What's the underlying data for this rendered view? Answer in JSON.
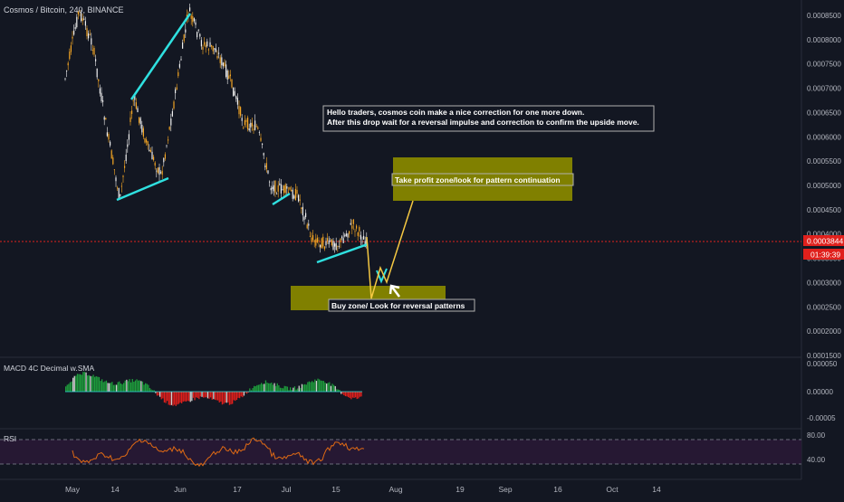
{
  "header": {
    "symbol_title": "Cosmos / Bitcoin, 240, BINANCE"
  },
  "annotations": {
    "idea_line1": "Hello traders, cosmos coin make a nice correction for one more down.",
    "idea_line2": "After this drop wait for a reversal impulse and correction to confirm the upside move.",
    "take_profit": "Take profit zone/look for pattern continuation",
    "buy_zone": "Buy zone/ Look for reversal patterns"
  },
  "price_axis": {
    "current_price": "0.0003844",
    "countdown": "01:39:39"
  },
  "colors": {
    "background": "#131722",
    "up_candle": "#f5a623",
    "down_candle": "#f0f0f0",
    "trendline": "#2fe0e0",
    "zone_fill": "#808000",
    "macd_pos": "#1e9e3c",
    "macd_neg": "#e0201c",
    "rsi_line": "#e06a14",
    "rsi_band": "#261833",
    "current_price_line": "#e0201c",
    "projection": "#f5c842"
  },
  "indicators": {
    "macd_label": "MACD 4C Decimal w.SMA",
    "rsi_label": "RSI"
  },
  "chart_data": [
    {
      "type": "candlestick",
      "title": "Cosmos / Bitcoin, 240, BINANCE",
      "y_ticks": [
        "0.0008500",
        "0.0008000",
        "0.0007500",
        "0.0007000",
        "0.0006500",
        "0.0006000",
        "0.0005500",
        "0.0005000",
        "0.0004500",
        "0.0004000",
        "0.0003500",
        "0.0003000",
        "0.0002500",
        "0.0002000",
        "0.0001500"
      ],
      "ylim": [
        0.00014,
        0.00088
      ],
      "x_ticks": [
        "May",
        "14",
        "Jun",
        "17",
        "Jul",
        "15",
        "Aug",
        "19",
        "Sep",
        "16",
        "Oct",
        "14"
      ],
      "close_path": [
        {
          "date": "May 1",
          "value": 0.00072
        },
        {
          "date": "May 4",
          "value": 0.00086
        },
        {
          "date": "May 7",
          "value": 0.00079
        },
        {
          "date": "May 10",
          "value": 0.00062
        },
        {
          "date": "May 12",
          "value": 0.00047
        },
        {
          "date": "May 16",
          "value": 0.00068
        },
        {
          "date": "May 20",
          "value": 0.00058
        },
        {
          "date": "May 24",
          "value": 0.00052
        },
        {
          "date": "May 28",
          "value": 0.00068
        },
        {
          "date": "Jun 1",
          "value": 0.00086
        },
        {
          "date": "Jun 5",
          "value": 0.00079
        },
        {
          "date": "Jun 10",
          "value": 0.00078
        },
        {
          "date": "Jun 14",
          "value": 0.00072
        },
        {
          "date": "Jun 19",
          "value": 0.00063
        },
        {
          "date": "Jun 23",
          "value": 0.00062
        },
        {
          "date": "Jun 26",
          "value": 0.0005
        },
        {
          "date": "Jul 1",
          "value": 0.00049
        },
        {
          "date": "Jul 5",
          "value": 0.00048
        },
        {
          "date": "Jul 9",
          "value": 0.00039
        },
        {
          "date": "Jul 13",
          "value": 0.00038
        },
        {
          "date": "Jul 17",
          "value": 0.00038
        },
        {
          "date": "Jul 21",
          "value": 0.00042
        },
        {
          "date": "Jul 22",
          "value": 0.00038
        }
      ],
      "current_price": 0.0003844
    },
    {
      "type": "bar",
      "title": "MACD 4C Decimal w.SMA",
      "y_ticks": [
        "0.000050",
        "0.00000",
        "-0.00005"
      ],
      "ylim": [
        -7e-05,
        7e-05
      ]
    },
    {
      "type": "line",
      "title": "RSI",
      "y_ticks": [
        "80.00",
        "40.00"
      ],
      "ylim": [
        20,
        95
      ],
      "bands": [
        70,
        30
      ]
    }
  ]
}
